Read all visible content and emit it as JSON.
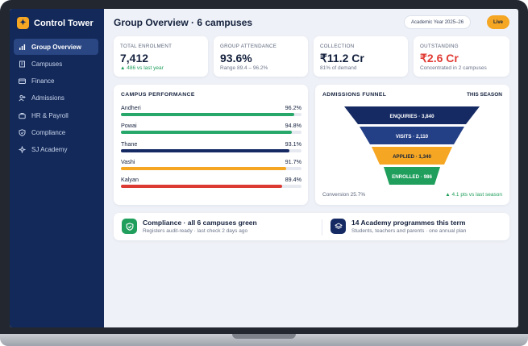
{
  "app": {
    "brand": "Control Tower"
  },
  "sidebar": {
    "items": [
      {
        "label": "Group Overview",
        "icon": "bar-chart-icon",
        "active": true
      },
      {
        "label": "Campuses",
        "icon": "building-icon",
        "active": false
      },
      {
        "label": "Finance",
        "icon": "card-icon",
        "active": false
      },
      {
        "label": "Admissions",
        "icon": "user-plus-icon",
        "active": false
      },
      {
        "label": "HR & Payroll",
        "icon": "briefcase-icon",
        "active": false
      },
      {
        "label": "Compliance",
        "icon": "shield-check-icon",
        "active": false
      },
      {
        "label": "SJ Academy",
        "icon": "sparkle-icon",
        "active": false
      }
    ]
  },
  "header": {
    "title": "Group Overview · 6 campuses",
    "year": "Academic Year 2025–26",
    "live": "Live"
  },
  "kpis": [
    {
      "label": "TOTAL ENROLMENT",
      "value": "7,412",
      "sub": "▲ 486 vs last year",
      "tone": "green"
    },
    {
      "label": "GROUP ATTENDANCE",
      "value": "93.6%",
      "sub": "Range 89.4 – 96.2%",
      "tone": "neutral"
    },
    {
      "label": "COLLECTION",
      "value": "₹11.2 Cr",
      "sub": "81% of demand",
      "tone": "neutral"
    },
    {
      "label": "OUTSTANDING",
      "value": "₹2.6 Cr",
      "sub": "Concentrated in 2 campuses",
      "tone": "red"
    }
  ],
  "performance": {
    "title": "CAMPUS PERFORMANCE",
    "rows": [
      {
        "name": "Andheri",
        "value": "96.2%",
        "pct": 96.2,
        "color": "#27a86a"
      },
      {
        "name": "Powai",
        "value": "94.8%",
        "pct": 94.8,
        "color": "#27a86a"
      },
      {
        "name": "Thane",
        "value": "93.1%",
        "pct": 93.1,
        "color": "#152a63"
      },
      {
        "name": "Vashi",
        "value": "91.7%",
        "pct": 91.7,
        "color": "#f5a623"
      },
      {
        "name": "Kalyan",
        "value": "89.4%",
        "pct": 89.4,
        "color": "#dc3b34"
      }
    ]
  },
  "funnel": {
    "title": "ADMISSIONS FUNNEL",
    "season": "THIS SEASON",
    "stages": [
      {
        "label": "ENQUIRIES · 3,840",
        "color": "#152a63"
      },
      {
        "label": "VISITS · 2,110",
        "color": "#233f86"
      },
      {
        "label": "APPLIED · 1,340",
        "color": "#f5a623"
      },
      {
        "label": "ENROLLED · 986",
        "color": "#1f9e5c"
      }
    ],
    "conversion": "Conversion 25.7%",
    "delta": "▲ 4.1 pts vs last season"
  },
  "footer": {
    "compliance": {
      "title": "Compliance · all 6 campuses green",
      "sub": "Registers audit-ready · last check 2 days ago",
      "icon": "shield-check-icon",
      "color": "#1f9e5c"
    },
    "academy": {
      "title": "14 Academy programmes this term",
      "sub": "Students, teachers and parents · one annual plan",
      "icon": "layers-icon",
      "color": "#152a63"
    }
  }
}
